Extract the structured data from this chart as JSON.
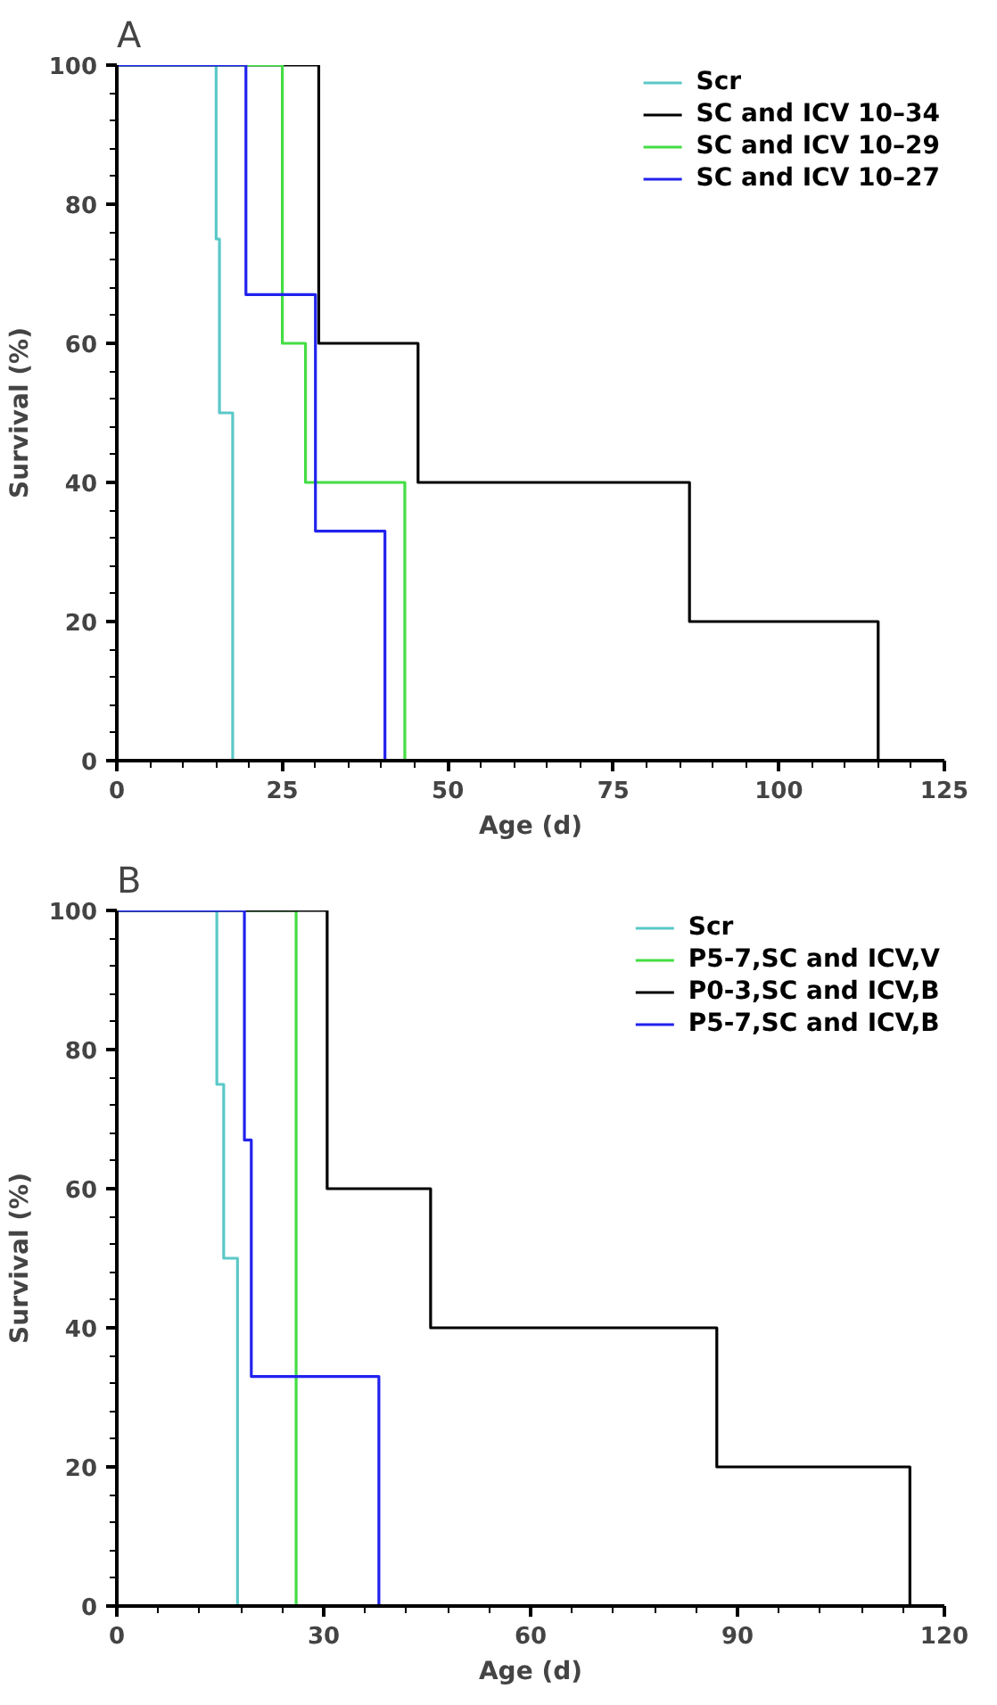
{
  "chart_data": [
    {
      "type": "step",
      "title": "A",
      "xlabel": "Age (d)",
      "ylabel": "Survival (%)",
      "xlim": [
        0,
        125
      ],
      "xticks": [
        0,
        25,
        50,
        75,
        100,
        125
      ],
      "ylim": [
        0,
        100
      ],
      "yticks": [
        0,
        20,
        40,
        60,
        80,
        100
      ],
      "grid": false,
      "legend": "top right",
      "series": [
        {
          "name": "Scr",
          "color": "#5cc8c8",
          "x": [
            0,
            15,
            15.5,
            17.5
          ],
          "values": [
            100,
            75,
            50,
            0
          ]
        },
        {
          "name": "SC and ICV 10–34",
          "color": "#000000",
          "x": [
            0,
            30.5,
            45.5,
            86.5,
            115
          ],
          "values": [
            100,
            60,
            40,
            20,
            0
          ]
        },
        {
          "name": "SC and ICV 10–29",
          "color": "#44dd44",
          "x": [
            0,
            25,
            28.5,
            43.5
          ],
          "values": [
            100,
            60,
            40,
            0
          ]
        },
        {
          "name": "SC and ICV 10–27",
          "color": "#2222ee",
          "x": [
            0,
            19.5,
            30,
            40.5
          ],
          "values": [
            100,
            67,
            33,
            0
          ]
        }
      ]
    },
    {
      "type": "step",
      "title": "B",
      "xlabel": "Age (d)",
      "ylabel": "Survival (%)",
      "xlim": [
        0,
        120
      ],
      "xticks": [
        0,
        30,
        60,
        90,
        120
      ],
      "ylim": [
        0,
        100
      ],
      "yticks": [
        0,
        20,
        40,
        60,
        80,
        100
      ],
      "grid": false,
      "legend": "top right",
      "series": [
        {
          "name": "Scr",
          "color": "#5cc8c8",
          "x": [
            0,
            14.5,
            15.5,
            17.5
          ],
          "values": [
            100,
            75,
            50,
            0
          ]
        },
        {
          "name": "P5-7,SC and ICV,V",
          "color": "#44dd44",
          "x": [
            0,
            26
          ],
          "values": [
            100,
            0
          ]
        },
        {
          "name": "P0-3,SC and ICV,B",
          "color": "#000000",
          "x": [
            0,
            30.5,
            45.5,
            87,
            115
          ],
          "values": [
            100,
            60,
            40,
            20,
            0
          ]
        },
        {
          "name": "P5-7,SC and ICV,B",
          "color": "#2222ee",
          "x": [
            0,
            18.5,
            19.5,
            38
          ],
          "values": [
            100,
            67,
            33,
            0
          ]
        }
      ]
    }
  ]
}
